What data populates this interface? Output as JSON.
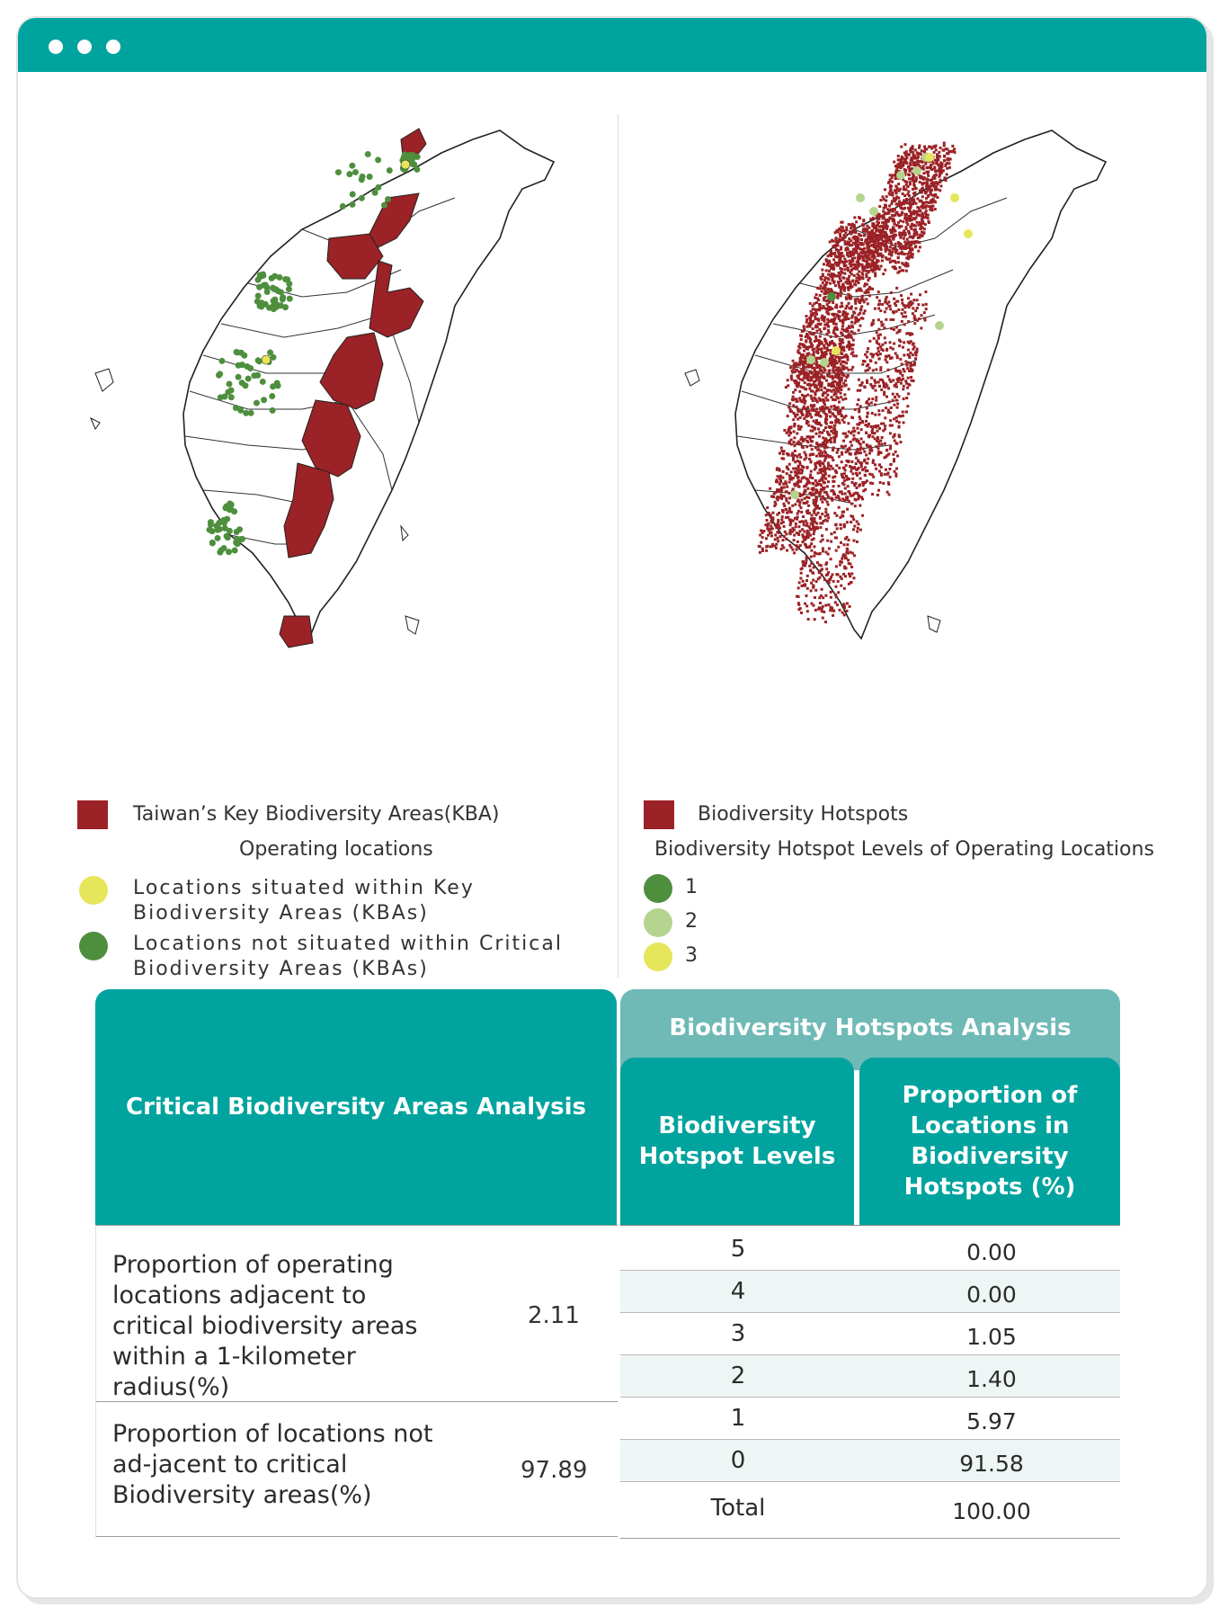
{
  "left_legend": {
    "kba_label": "Taiwan’s Key Biodiversity Areas(KBA)",
    "operating_title": "Operating locations",
    "in_kba_label": "Locations situated within Key Biodiversity Areas (KBAs)",
    "not_in_kba_label": "Locations not situated within Critical Biodiversity Areas (KBAs)"
  },
  "right_legend": {
    "hotspot_label": "Biodiversity Hotspots",
    "levels_title": "Biodiversity Hotspot Levels of Operating Locations",
    "levels": [
      "1",
      "2",
      "3"
    ]
  },
  "colors": {
    "brand_teal": "#00a39e",
    "teal_light": "#6fb9b6",
    "kba_red": "#9b2226",
    "dark_green": "#4e8f3e",
    "light_green": "#b5d490",
    "yellow": "#e6e65a"
  },
  "table": {
    "left_header": "Critical Biodiversity Areas Analysis",
    "right_header": "Biodiversity Hotspots Analysis",
    "sub_header_levels": "Biodiversity Hotspot Levels",
    "sub_header_proportion": "Proportion of Locations in Biodiversity Hotspots (%)",
    "left_rows": [
      {
        "label": "Proportion of operating locations adjacent to critical biodiversity areas within a 1-kilometer radius(%)",
        "value": "2.11"
      },
      {
        "label": "Proportion of locations not ad-jacent to critical Biodiversity areas(%)",
        "value": "97.89"
      }
    ],
    "right_rows": [
      {
        "level": "5",
        "proportion": "0.00"
      },
      {
        "level": "4",
        "proportion": "0.00"
      },
      {
        "level": "3",
        "proportion": "1.05"
      },
      {
        "level": "2",
        "proportion": "1.40"
      },
      {
        "level": "1",
        "proportion": "5.97"
      },
      {
        "level": "0",
        "proportion": "91.58"
      },
      {
        "level": "Total",
        "proportion": "100.00"
      }
    ]
  }
}
